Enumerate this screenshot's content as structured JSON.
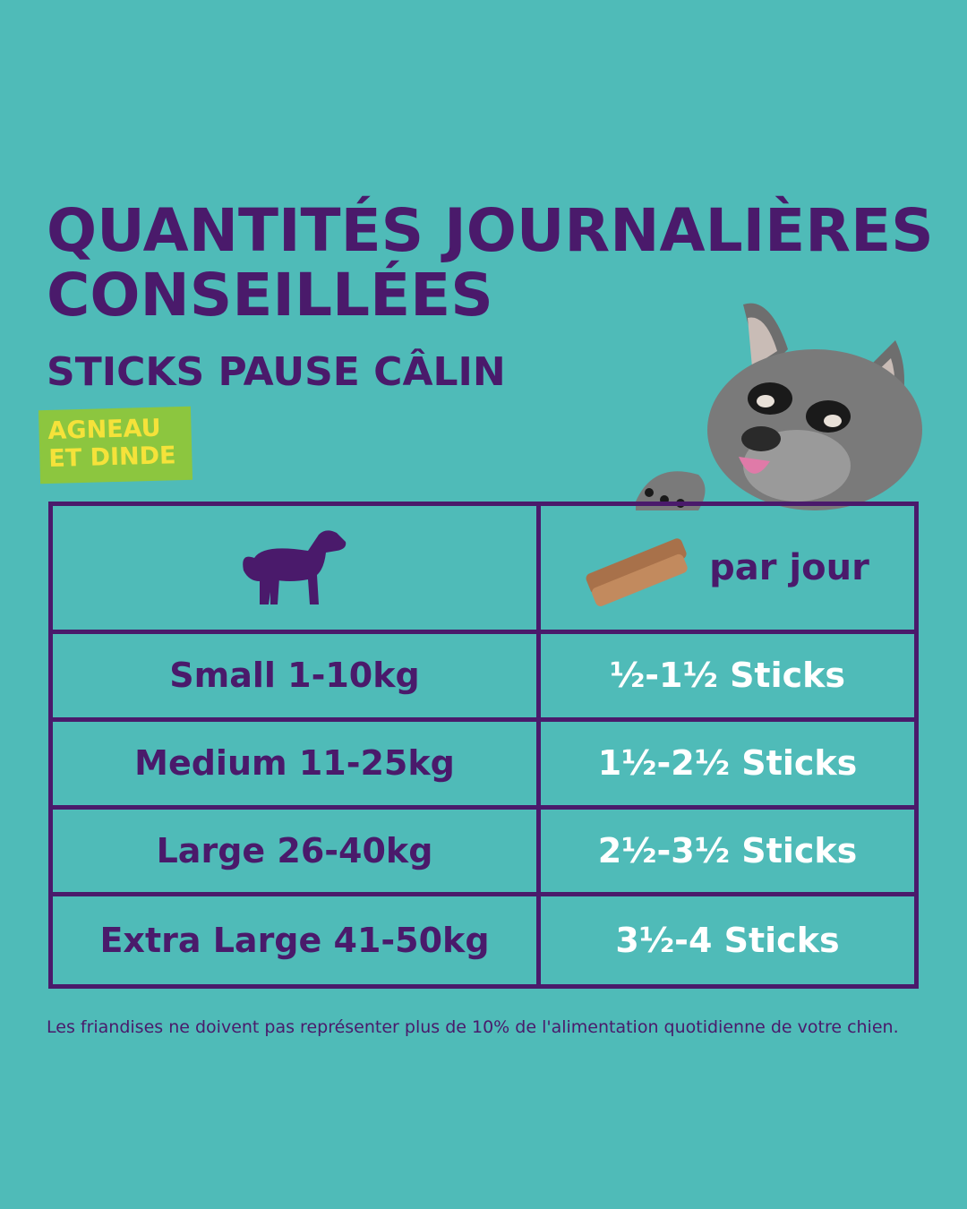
{
  "title": "QUANTITÉS JOURNALIÈRES CONSEILLÉES",
  "subtitle": "STICKS PAUSE CÂLIN",
  "flavor": {
    "line1": "AGNEAU",
    "line2": "ET DINDE"
  },
  "table": {
    "header_per_day": "par jour",
    "rows": [
      {
        "size": "Small 1-10kg",
        "amount": "½-1½ Sticks"
      },
      {
        "size": "Medium 11-25kg",
        "amount": "1½-2½ Sticks"
      },
      {
        "size": "Large 26-40kg",
        "amount": "2½-3½ Sticks"
      },
      {
        "size": "Extra Large 41-50kg",
        "amount": "3½-4 Sticks"
      }
    ]
  },
  "footnote": "Les friandises ne doivent pas représenter plus de 10% de l'alimentation quotidienne de votre chien.",
  "colors": {
    "background": "#4fbbb8",
    "primary_purple": "#4a1a6b",
    "flavor_badge": "#8cc63f",
    "flavor_text": "#f5e23a",
    "amount_text": "#ffffff"
  },
  "icons": [
    "dog-silhouette-icon",
    "treat-sticks-icon",
    "cartoon-dog-illustration"
  ]
}
